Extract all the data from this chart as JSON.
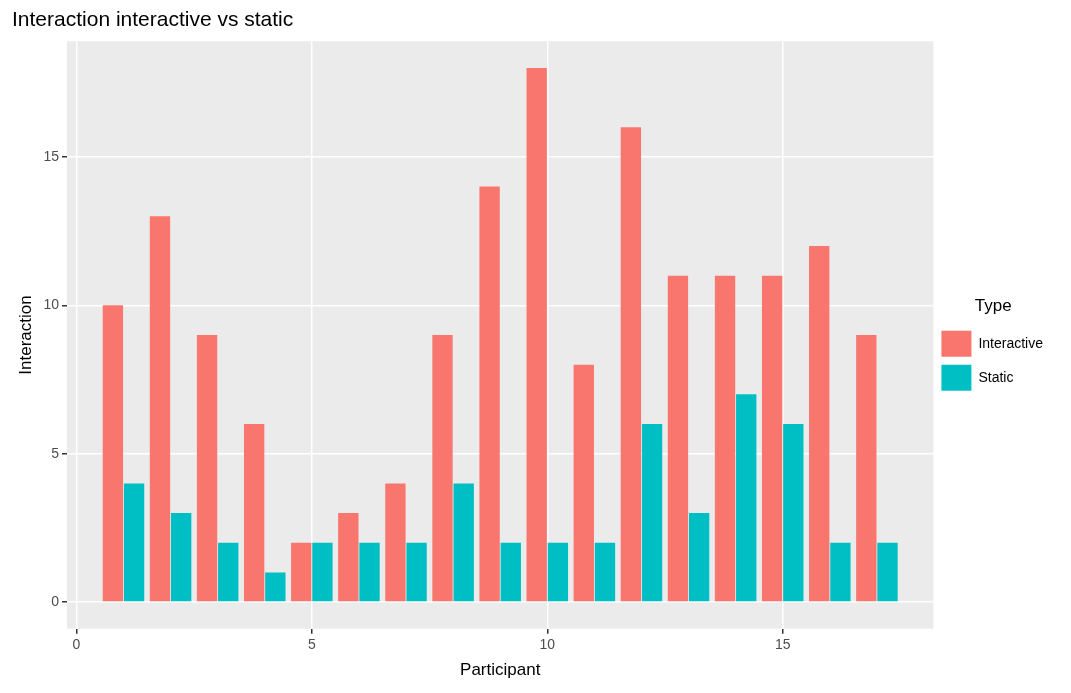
{
  "chart_data": {
    "type": "bar",
    "title": "Interaction interactive vs static",
    "xlabel": "Participant",
    "ylabel": "Interaction",
    "legend_title": "Type",
    "x": [
      1,
      2,
      3,
      4,
      5,
      6,
      7,
      8,
      9,
      10,
      11,
      12,
      13,
      14,
      15,
      16,
      17
    ],
    "series": [
      {
        "name": "Interactive",
        "color": "#f8766d",
        "values": [
          10,
          13,
          9,
          6,
          2,
          3,
          4,
          9,
          14,
          18,
          8,
          16,
          11,
          11,
          11,
          12,
          9
        ]
      },
      {
        "name": "Static",
        "color": "#00bfc4",
        "values": [
          4,
          3,
          2,
          1,
          2,
          2,
          2,
          4,
          2,
          2,
          2,
          6,
          3,
          7,
          6,
          2,
          2
        ]
      }
    ],
    "xlim": [
      -0.2,
      18.2
    ],
    "xticks": [
      0,
      5,
      10,
      15
    ],
    "ylim": [
      -0.9,
      18.9
    ],
    "yticks": [
      0,
      5,
      10,
      15
    ],
    "grid": true,
    "legend": "right"
  }
}
